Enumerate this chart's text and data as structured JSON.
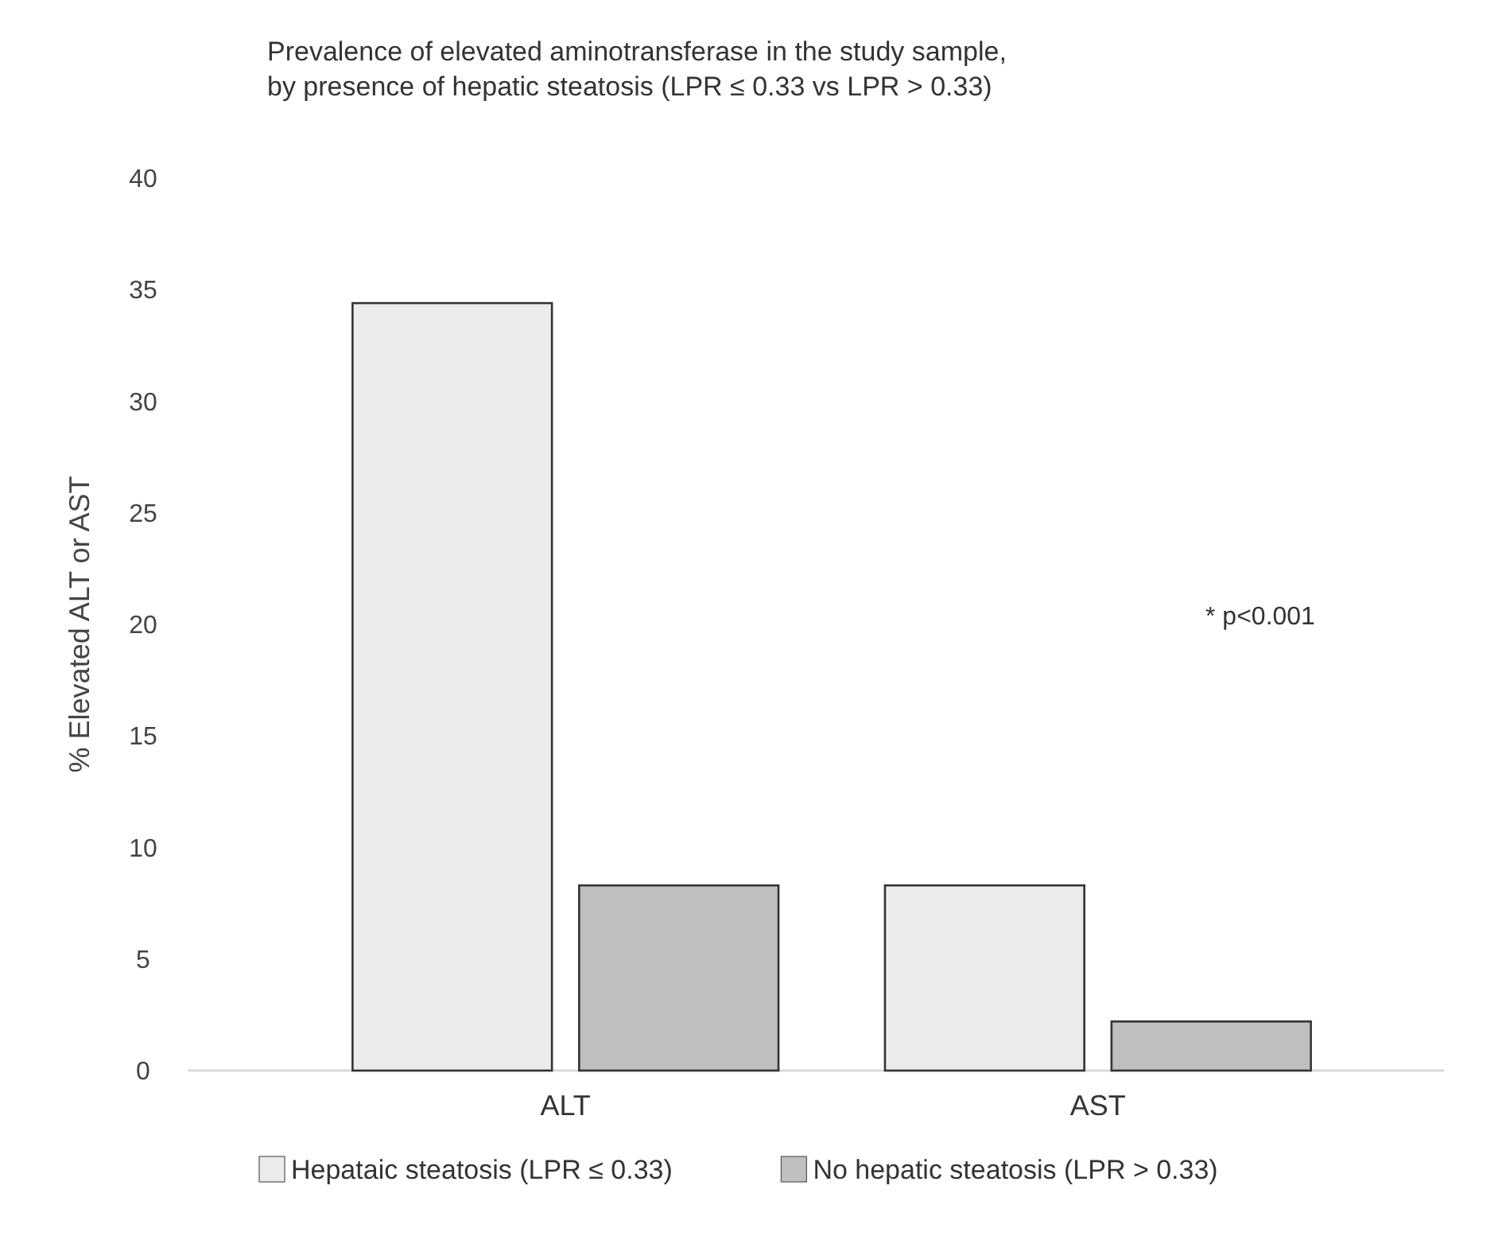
{
  "chart_data": {
    "type": "bar",
    "title": "Prevalence of elevated aminotransferase in the study sample, by presence of hepatic steatosis (LPR ≤ 0.33 vs LPR > 0.33)",
    "ylabel": "% Elevated ALT or AST",
    "categories": [
      "ALT",
      "AST"
    ],
    "series": [
      {
        "name": "Hepataic steatosis (LPR ≤ 0.33)",
        "color": "#ebebeb",
        "values": [
          34.4,
          8.3
        ]
      },
      {
        "name": "No hepatic steatosis (LPR > 0.33)",
        "color": "#bfbfbf",
        "values": [
          8.3,
          2.2
        ]
      }
    ],
    "ylim": [
      0,
      40
    ],
    "yticks": [
      0,
      5,
      10,
      15,
      20,
      25,
      30,
      35,
      40
    ],
    "grid": false,
    "legend": "bottom",
    "annotations": [
      "* p<0.001"
    ]
  }
}
